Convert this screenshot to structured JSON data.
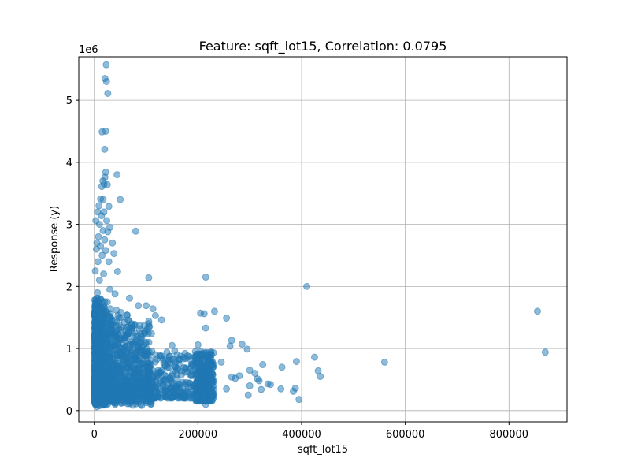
{
  "chart_data": {
    "type": "scatter",
    "title": "Feature: sqft_lot15, Correlation: 0.0795",
    "xlabel": "sqft_lot15",
    "ylabel": "Response (y)",
    "y_offset_label": "1e6",
    "xlim": [
      -30000,
      912000
    ],
    "ylim": [
      -180000,
      5700000
    ],
    "xticks": [
      0,
      200000,
      400000,
      600000,
      800000
    ],
    "yticks": [
      0,
      1000000,
      2000000,
      3000000,
      4000000,
      5000000
    ],
    "xtick_labels": [
      "0",
      "200000",
      "400000",
      "600000",
      "800000"
    ],
    "ytick_labels": [
      "0",
      "1",
      "2",
      "3",
      "4",
      "5"
    ],
    "grid": true,
    "color": "#1f77b4",
    "series": [
      {
        "points": [
          [
            23000,
            5570000
          ],
          [
            20500,
            5350000
          ],
          [
            23500,
            5300000
          ],
          [
            26000,
            5110000
          ],
          [
            15000,
            4490000
          ],
          [
            22000,
            4500000
          ],
          [
            20000,
            4210000
          ],
          [
            22000,
            3840000
          ],
          [
            20500,
            3760000
          ],
          [
            44000,
            3800000
          ],
          [
            16500,
            3700000
          ],
          [
            19000,
            3650000
          ],
          [
            14500,
            3610000
          ],
          [
            25000,
            3640000
          ],
          [
            50000,
            3400000
          ],
          [
            12000,
            3410000
          ],
          [
            17000,
            3400000
          ],
          [
            28000,
            3290000
          ],
          [
            9000,
            3300000
          ],
          [
            6000,
            3200000
          ],
          [
            18500,
            3200000
          ],
          [
            14000,
            3140000
          ],
          [
            3000,
            3060000
          ],
          [
            24000,
            3060000
          ],
          [
            10000,
            3000000
          ],
          [
            30000,
            2950000
          ],
          [
            17000,
            2900000
          ],
          [
            80000,
            2890000
          ],
          [
            26000,
            2880000
          ],
          [
            8000,
            2800000
          ],
          [
            20000,
            2750000
          ],
          [
            5000,
            2700000
          ],
          [
            35000,
            2700000
          ],
          [
            12000,
            2650000
          ],
          [
            4000,
            2600000
          ],
          [
            22000,
            2580000
          ],
          [
            38000,
            2530000
          ],
          [
            15000,
            2500000
          ],
          [
            7000,
            2400000
          ],
          [
            28000,
            2400000
          ],
          [
            2000,
            2250000
          ],
          [
            45000,
            2240000
          ],
          [
            18000,
            2200000
          ],
          [
            10000,
            2100000
          ],
          [
            105000,
            2140000
          ],
          [
            215000,
            2150000
          ],
          [
            410000,
            2000000
          ],
          [
            30000,
            1950000
          ],
          [
            6000,
            1900000
          ],
          [
            40000,
            1880000
          ],
          [
            68000,
            1810000
          ],
          [
            12000,
            1800000
          ],
          [
            25000,
            1750000
          ],
          [
            85000,
            1690000
          ],
          [
            100000,
            1690000
          ],
          [
            113000,
            1640000
          ],
          [
            855000,
            1600000
          ],
          [
            232000,
            1600000
          ],
          [
            205000,
            1570000
          ],
          [
            212000,
            1560000
          ],
          [
            118000,
            1530000
          ],
          [
            48000,
            1500000
          ],
          [
            255000,
            1490000
          ],
          [
            130000,
            1460000
          ],
          [
            105000,
            1440000
          ],
          [
            72000,
            1400000
          ],
          [
            78000,
            1390000
          ],
          [
            35000,
            1380000
          ],
          [
            105000,
            1350000
          ],
          [
            215000,
            1330000
          ],
          [
            50000,
            1300000
          ],
          [
            8000,
            1700000
          ],
          [
            3000,
            1600000
          ],
          [
            20000,
            1550000
          ],
          [
            15000,
            1450000
          ],
          [
            5000,
            1350000
          ],
          [
            30000,
            1250000
          ],
          [
            90000,
            1240000
          ],
          [
            60000,
            1200000
          ],
          [
            100000,
            1100000
          ],
          [
            265000,
            1130000
          ],
          [
            285000,
            1070000
          ],
          [
            200000,
            1060000
          ],
          [
            150000,
            1050000
          ],
          [
            262000,
            1040000
          ],
          [
            295000,
            990000
          ],
          [
            155000,
            960000
          ],
          [
            195000,
            950000
          ],
          [
            140000,
            940000
          ],
          [
            175000,
            920000
          ],
          [
            180000,
            880000
          ],
          [
            425000,
            860000
          ],
          [
            220000,
            850000
          ],
          [
            390000,
            790000
          ],
          [
            245000,
            780000
          ],
          [
            560000,
            780000
          ],
          [
            870000,
            940000
          ],
          [
            325000,
            740000
          ],
          [
            362000,
            700000
          ],
          [
            300000,
            650000
          ],
          [
            432000,
            640000
          ],
          [
            310000,
            600000
          ],
          [
            280000,
            560000
          ],
          [
            436000,
            550000
          ],
          [
            265000,
            540000
          ],
          [
            272000,
            520000
          ],
          [
            315000,
            510000
          ],
          [
            318000,
            480000
          ],
          [
            335000,
            430000
          ],
          [
            340000,
            420000
          ],
          [
            300000,
            400000
          ],
          [
            388000,
            360000
          ],
          [
            360000,
            350000
          ],
          [
            255000,
            350000
          ],
          [
            322000,
            340000
          ],
          [
            384000,
            310000
          ],
          [
            297000,
            250000
          ],
          [
            395000,
            180000
          ],
          [
            198000,
            180000
          ],
          [
            215000,
            100000
          ],
          [
            155000,
            250000
          ],
          [
            170000,
            280000
          ],
          [
            120000,
            300000
          ],
          [
            85000,
            220000
          ],
          [
            95000,
            170000
          ],
          [
            110000,
            150000
          ],
          [
            70000,
            180000
          ],
          [
            40000,
            120000
          ],
          [
            20000,
            100000
          ],
          [
            10000,
            80000
          ],
          [
            5000,
            60000
          ],
          [
            2000,
            100000
          ],
          [
            1500,
            200000
          ],
          [
            1000,
            300000
          ],
          [
            3000,
            400000
          ]
        ]
      }
    ]
  }
}
